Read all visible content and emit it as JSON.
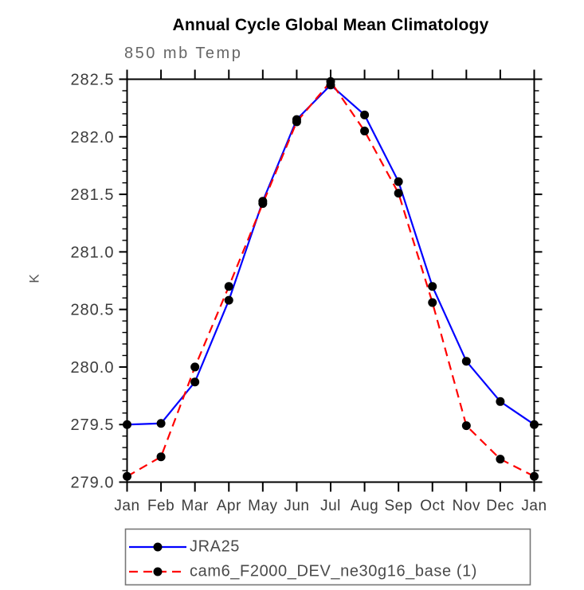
{
  "header": {
    "title": "Annual Cycle Global Mean Climatology",
    "subtitle": "850 mb Temp"
  },
  "chart_data": {
    "type": "line",
    "title": "Annual Cycle Global Mean Climatology",
    "subtitle": "850 mb Temp",
    "xlabel": "",
    "ylabel": "K",
    "categories": [
      "Jan",
      "Feb",
      "Mar",
      "Apr",
      "May",
      "Jun",
      "Jul",
      "Aug",
      "Sep",
      "Oct",
      "Nov",
      "Dec",
      "Jan"
    ],
    "ylim": [
      279.0,
      282.5
    ],
    "ytick_step": 0.5,
    "yminor_step": 0.1,
    "grid": false,
    "legend_position": "bottom-left-box",
    "axis_color": "#000000",
    "marker_color": "#000000",
    "series": [
      {
        "name": "JRA25",
        "color": "#0000ff",
        "style": "solid",
        "marker": "circle",
        "values": [
          279.5,
          279.51,
          279.87,
          280.58,
          281.44,
          282.15,
          282.45,
          282.19,
          281.61,
          280.7,
          280.05,
          279.7,
          279.5
        ]
      },
      {
        "name": "cam6_F2000_DEV_ne30g16_base (1)",
        "color": "#ff0000",
        "style": "dashed",
        "marker": "circle",
        "values": [
          279.05,
          279.22,
          280.0,
          280.7,
          281.42,
          282.13,
          282.48,
          282.05,
          281.51,
          280.56,
          279.49,
          279.2,
          279.05
        ]
      }
    ]
  }
}
